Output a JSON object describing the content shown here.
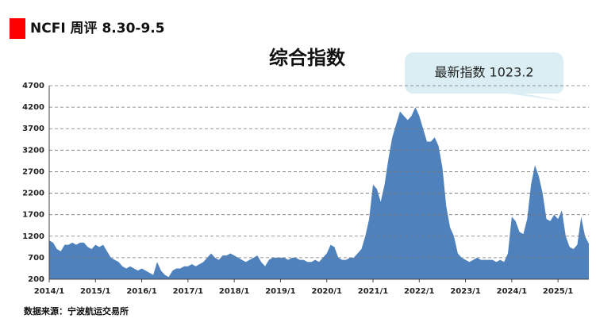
{
  "header": "NCFI 周评 8.30-9.5",
  "source": "数据来源：宁波航运交易所",
  "chart_data": {
    "type": "area",
    "title": "综合指数",
    "annotation": "最新指数 1023.2",
    "color": "#4f81bd",
    "grid": true,
    "ylim": [
      200,
      4700
    ],
    "yticks": [
      200,
      700,
      1200,
      1700,
      2200,
      2700,
      3200,
      3700,
      4200,
      4700
    ],
    "categories": [
      "2014/1",
      "2014/2",
      "2014/3",
      "2014/4",
      "2014/5",
      "2014/6",
      "2014/7",
      "2014/8",
      "2014/9",
      "2014/10",
      "2014/11",
      "2014/12",
      "2015/1",
      "2015/2",
      "2015/3",
      "2015/4",
      "2015/5",
      "2015/6",
      "2015/7",
      "2015/8",
      "2015/9",
      "2015/10",
      "2015/11",
      "2015/12",
      "2016/1",
      "2016/2",
      "2016/3",
      "2016/4",
      "2016/5",
      "2016/6",
      "2016/7",
      "2016/8",
      "2016/9",
      "2016/10",
      "2016/11",
      "2016/12",
      "2017/1",
      "2017/2",
      "2017/3",
      "2017/4",
      "2017/5",
      "2017/6",
      "2017/7",
      "2017/8",
      "2017/9",
      "2017/10",
      "2017/11",
      "2017/12",
      "2018/1",
      "2018/2",
      "2018/3",
      "2018/4",
      "2018/5",
      "2018/6",
      "2018/7",
      "2018/8",
      "2018/9",
      "2018/10",
      "2018/11",
      "2018/12",
      "2019/1",
      "2019/2",
      "2019/3",
      "2019/4",
      "2019/5",
      "2019/6",
      "2019/7",
      "2019/8",
      "2019/9",
      "2019/10",
      "2019/11",
      "2019/12",
      "2020/1",
      "2020/2",
      "2020/3",
      "2020/4",
      "2020/5",
      "2020/6",
      "2020/7",
      "2020/8",
      "2020/9",
      "2020/10",
      "2020/11",
      "2020/12",
      "2021/1",
      "2021/2",
      "2021/3",
      "2021/4",
      "2021/5",
      "2021/6",
      "2021/7",
      "2021/8",
      "2021/9",
      "2021/10",
      "2021/11",
      "2021/12",
      "2022/1",
      "2022/2",
      "2022/3",
      "2022/4",
      "2022/5",
      "2022/6",
      "2022/7",
      "2022/8",
      "2022/9",
      "2022/10",
      "2022/11",
      "2022/12",
      "2023/1",
      "2023/2",
      "2023/3",
      "2023/4",
      "2023/5",
      "2023/6",
      "2023/7",
      "2023/8",
      "2023/9",
      "2023/10",
      "2023/11",
      "2023/12",
      "2024/1",
      "2024/2",
      "2024/3",
      "2024/4",
      "2024/5",
      "2024/6",
      "2024/7",
      "2024/8",
      "2024/9",
      "2024/10",
      "2024/11",
      "2024/12",
      "2025/1",
      "2025/2",
      "2025/3",
      "2025/4",
      "2025/5",
      "2025/6",
      "2025/7",
      "2025/8",
      "2025/9"
    ],
    "values": [
      1100,
      1050,
      900,
      850,
      1000,
      1000,
      1050,
      1000,
      1050,
      1050,
      950,
      900,
      1000,
      950,
      1000,
      850,
      700,
      650,
      600,
      500,
      450,
      500,
      450,
      400,
      450,
      400,
      350,
      300,
      600,
      400,
      300,
      250,
      400,
      450,
      450,
      500,
      500,
      550,
      500,
      550,
      600,
      700,
      800,
      700,
      650,
      750,
      750,
      800,
      750,
      700,
      650,
      600,
      650,
      700,
      750,
      600,
      500,
      650,
      700,
      700,
      700,
      700,
      650,
      700,
      700,
      650,
      650,
      600,
      600,
      650,
      600,
      700,
      800,
      1000,
      950,
      700,
      650,
      650,
      700,
      700,
      800,
      900,
      1200,
      1600,
      2400,
      2300,
      2000,
      2400,
      3000,
      3500,
      3800,
      4100,
      4000,
      3900,
      4000,
      4200,
      4000,
      3700,
      3400,
      3400,
      3500,
      3300,
      2800,
      1900,
      1400,
      1200,
      800,
      700,
      650,
      600,
      650,
      700,
      650,
      650,
      650,
      650,
      600,
      650,
      600,
      800,
      1650,
      1550,
      1300,
      1250,
      1600,
      2400,
      2850,
      2600,
      2200,
      1600,
      1550,
      1700,
      1600,
      1800,
      1200,
      950,
      900,
      1000,
      1650,
      1200,
      1023.2
    ]
  }
}
